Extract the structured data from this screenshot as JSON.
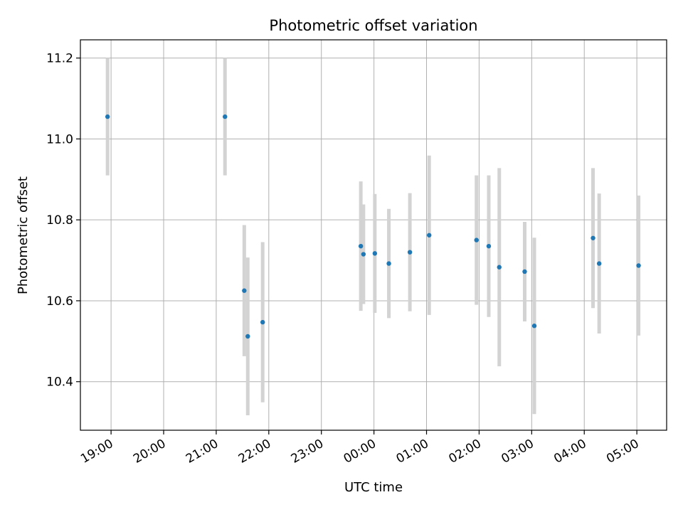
{
  "chart_data": {
    "type": "scatter",
    "title": "Photometric offset variation",
    "xlabel": "UTC time",
    "ylabel": "Photometric offset",
    "x_is_time": true,
    "xlim": [
      "18:25",
      "05:34"
    ],
    "ylim": [
      10.28,
      11.245
    ],
    "x_ticks": [
      "19:00",
      "20:00",
      "21:00",
      "22:00",
      "23:00",
      "00:00",
      "01:00",
      "02:00",
      "03:00",
      "04:00",
      "05:00"
    ],
    "y_ticks": [
      10.4,
      10.6,
      10.8,
      11.0,
      11.2
    ],
    "y_tick_labels": [
      "10.4",
      "10.6",
      "10.8",
      "11.0",
      "11.2"
    ],
    "grid": true,
    "marker_color": "#1f77b4",
    "errorbar_color": "#d3d3d3",
    "points": [
      {
        "t": "18:56",
        "y": 11.055,
        "err": 0.145
      },
      {
        "t": "21:10",
        "y": 11.055,
        "err": 0.145
      },
      {
        "t": "21:32",
        "y": 10.625,
        "err": 0.162
      },
      {
        "t": "21:36",
        "y": 10.512,
        "err": 0.195
      },
      {
        "t": "21:53",
        "y": 10.547,
        "err": 0.198
      },
      {
        "t": "23:45",
        "y": 10.735,
        "err": 0.16
      },
      {
        "t": "23:48",
        "y": 10.715,
        "err": 0.123
      },
      {
        "t": "24:01",
        "y": 10.717,
        "err": 0.147
      },
      {
        "t": "24:17",
        "y": 10.692,
        "err": 0.135
      },
      {
        "t": "24:41",
        "y": 10.72,
        "err": 0.146
      },
      {
        "t": "25:03",
        "y": 10.762,
        "err": 0.197
      },
      {
        "t": "25:57",
        "y": 10.75,
        "err": 0.16
      },
      {
        "t": "26:11",
        "y": 10.735,
        "err": 0.175
      },
      {
        "t": "26:23",
        "y": 10.683,
        "err": 0.245
      },
      {
        "t": "26:52",
        "y": 10.672,
        "err": 0.123
      },
      {
        "t": "27:03",
        "y": 10.538,
        "err": 0.218
      },
      {
        "t": "28:10",
        "y": 10.755,
        "err": 0.173
      },
      {
        "t": "28:17",
        "y": 10.692,
        "err": 0.173
      },
      {
        "t": "29:02",
        "y": 10.687,
        "err": 0.173
      }
    ]
  }
}
